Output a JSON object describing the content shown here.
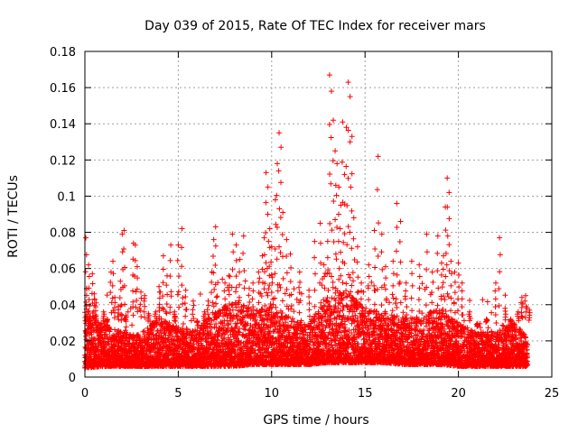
{
  "chart_data": {
    "type": "scatter",
    "title": "Day 039 of 2015, Rate Of TEC Index for receiver mars",
    "xlabel": "GPS time / hours",
    "ylabel": "ROTI / TECUs",
    "xlim": [
      0,
      25
    ],
    "ylim": [
      0,
      0.18
    ],
    "xticks": [
      0,
      5,
      10,
      15,
      20,
      25
    ],
    "yticks": [
      0,
      0.02,
      0.04,
      0.06,
      0.08,
      0.1,
      0.12,
      0.14,
      0.16,
      0.18
    ],
    "xtick_labels": [
      "0",
      "5",
      "10",
      "15",
      "20",
      "25"
    ],
    "ytick_labels": [
      "0",
      "0.02",
      "0.04",
      "0.06",
      "0.08",
      "0.1",
      "0.12",
      "0.14",
      "0.16",
      "0.18"
    ],
    "grid": true,
    "marker": "+",
    "color": "#ff0000",
    "series": [
      {
        "name": "ROTI",
        "points": [
          [
            0.05,
            0.077
          ],
          [
            0.1,
            0.049
          ],
          [
            0.15,
            0.036
          ],
          [
            0.2,
            0.062
          ],
          [
            0.25,
            0.033
          ],
          [
            0.3,
            0.028
          ],
          [
            0.4,
            0.057
          ],
          [
            0.5,
            0.046
          ],
          [
            0.6,
            0.041
          ],
          [
            1.0,
            0.036
          ],
          [
            1.2,
            0.032
          ],
          [
            1.4,
            0.058
          ],
          [
            1.5,
            0.064
          ],
          [
            1.6,
            0.044
          ],
          [
            1.8,
            0.039
          ],
          [
            1.9,
            0.053
          ],
          [
            2.0,
            0.079
          ],
          [
            2.1,
            0.081
          ],
          [
            2.2,
            0.034
          ],
          [
            2.6,
            0.074
          ],
          [
            2.7,
            0.073
          ],
          [
            2.8,
            0.061
          ],
          [
            3.0,
            0.047
          ],
          [
            3.2,
            0.045
          ],
          [
            3.4,
            0.035
          ],
          [
            3.6,
            0.028
          ],
          [
            3.8,
            0.036
          ],
          [
            4.0,
            0.047
          ],
          [
            4.2,
            0.067
          ],
          [
            4.4,
            0.056
          ],
          [
            4.6,
            0.073
          ],
          [
            4.8,
            0.036
          ],
          [
            5.0,
            0.073
          ],
          [
            5.2,
            0.082
          ],
          [
            5.4,
            0.048
          ],
          [
            5.8,
            0.042
          ],
          [
            6.0,
            0.031
          ],
          [
            6.4,
            0.036
          ],
          [
            6.6,
            0.042
          ],
          [
            6.8,
            0.058
          ],
          [
            6.9,
            0.076
          ],
          [
            7.0,
            0.083
          ],
          [
            7.5,
            0.052
          ],
          [
            7.7,
            0.056
          ],
          [
            7.9,
            0.079
          ],
          [
            8.1,
            0.073
          ],
          [
            8.3,
            0.065
          ],
          [
            8.5,
            0.078
          ],
          [
            8.8,
            0.049
          ],
          [
            9.0,
            0.052
          ],
          [
            9.3,
            0.058
          ],
          [
            9.5,
            0.067
          ],
          [
            9.6,
            0.077
          ],
          [
            9.7,
            0.113
          ],
          [
            9.8,
            0.105
          ],
          [
            9.9,
            0.082
          ],
          [
            10.0,
            0.072
          ],
          [
            10.2,
            0.098
          ],
          [
            10.3,
            0.118
          ],
          [
            10.4,
            0.135
          ],
          [
            10.5,
            0.127
          ],
          [
            10.6,
            0.091
          ],
          [
            10.8,
            0.076
          ],
          [
            11.0,
            0.068
          ],
          [
            11.5,
            0.058
          ],
          [
            12.0,
            0.048
          ],
          [
            12.3,
            0.075
          ],
          [
            12.6,
            0.085
          ],
          [
            12.8,
            0.062
          ],
          [
            13.0,
            0.075
          ],
          [
            13.1,
            0.167
          ],
          [
            13.2,
            0.158
          ],
          [
            13.3,
            0.142
          ],
          [
            13.4,
            0.125
          ],
          [
            13.5,
            0.118
          ],
          [
            13.6,
            0.105
          ],
          [
            13.7,
            0.095
          ],
          [
            13.8,
            0.141
          ],
          [
            13.9,
            0.112
          ],
          [
            14.0,
            0.138
          ],
          [
            14.1,
            0.163
          ],
          [
            14.2,
            0.155
          ],
          [
            14.3,
            0.133
          ],
          [
            14.4,
            0.088
          ],
          [
            14.6,
            0.072
          ],
          [
            14.8,
            0.052
          ],
          [
            15.2,
            0.062
          ],
          [
            15.5,
            0.081
          ],
          [
            15.7,
            0.122
          ],
          [
            15.9,
            0.079
          ],
          [
            16.1,
            0.061
          ],
          [
            16.5,
            0.064
          ],
          [
            16.7,
            0.096
          ],
          [
            16.9,
            0.086
          ],
          [
            17.2,
            0.052
          ],
          [
            17.5,
            0.064
          ],
          [
            17.9,
            0.062
          ],
          [
            18.3,
            0.079
          ],
          [
            18.6,
            0.058
          ],
          [
            18.9,
            0.078
          ],
          [
            19.1,
            0.063
          ],
          [
            19.2,
            0.067
          ],
          [
            19.3,
            0.094
          ],
          [
            19.4,
            0.11
          ],
          [
            19.5,
            0.102
          ],
          [
            19.6,
            0.064
          ],
          [
            19.8,
            0.058
          ],
          [
            20.0,
            0.063
          ],
          [
            20.2,
            0.052
          ],
          [
            20.6,
            0.036
          ],
          [
            21.0,
            0.028
          ],
          [
            21.5,
            0.032
          ],
          [
            22.0,
            0.052
          ],
          [
            22.2,
            0.077
          ],
          [
            22.5,
            0.038
          ],
          [
            22.8,
            0.032
          ],
          [
            23.0,
            0.026
          ],
          [
            23.2,
            0.036
          ],
          [
            23.4,
            0.044
          ],
          [
            23.6,
            0.045
          ],
          [
            23.8,
            0.037
          ]
        ]
      }
    ],
    "density_profile": {
      "description": "Dense background of ROTI samples across the whole day; for each hour: [hour, typical floor, typical upper envelope]",
      "bands": [
        [
          0,
          0.005,
          0.036
        ],
        [
          1,
          0.006,
          0.03
        ],
        [
          2,
          0.006,
          0.025
        ],
        [
          3,
          0.006,
          0.024
        ],
        [
          4,
          0.006,
          0.033
        ],
        [
          5,
          0.006,
          0.028
        ],
        [
          6,
          0.006,
          0.027
        ],
        [
          7,
          0.006,
          0.036
        ],
        [
          8,
          0.006,
          0.042
        ],
        [
          9,
          0.007,
          0.038
        ],
        [
          10,
          0.007,
          0.04
        ],
        [
          11,
          0.007,
          0.033
        ],
        [
          12,
          0.007,
          0.03
        ],
        [
          13,
          0.008,
          0.046
        ],
        [
          14,
          0.008,
          0.048
        ],
        [
          15,
          0.008,
          0.038
        ],
        [
          16,
          0.008,
          0.036
        ],
        [
          17,
          0.007,
          0.033
        ],
        [
          18,
          0.007,
          0.034
        ],
        [
          19,
          0.007,
          0.038
        ],
        [
          20,
          0.006,
          0.03
        ],
        [
          21,
          0.006,
          0.025
        ],
        [
          22,
          0.006,
          0.026
        ],
        [
          23,
          0.006,
          0.03
        ],
        [
          23.7,
          0.006,
          0.022
        ]
      ]
    }
  }
}
